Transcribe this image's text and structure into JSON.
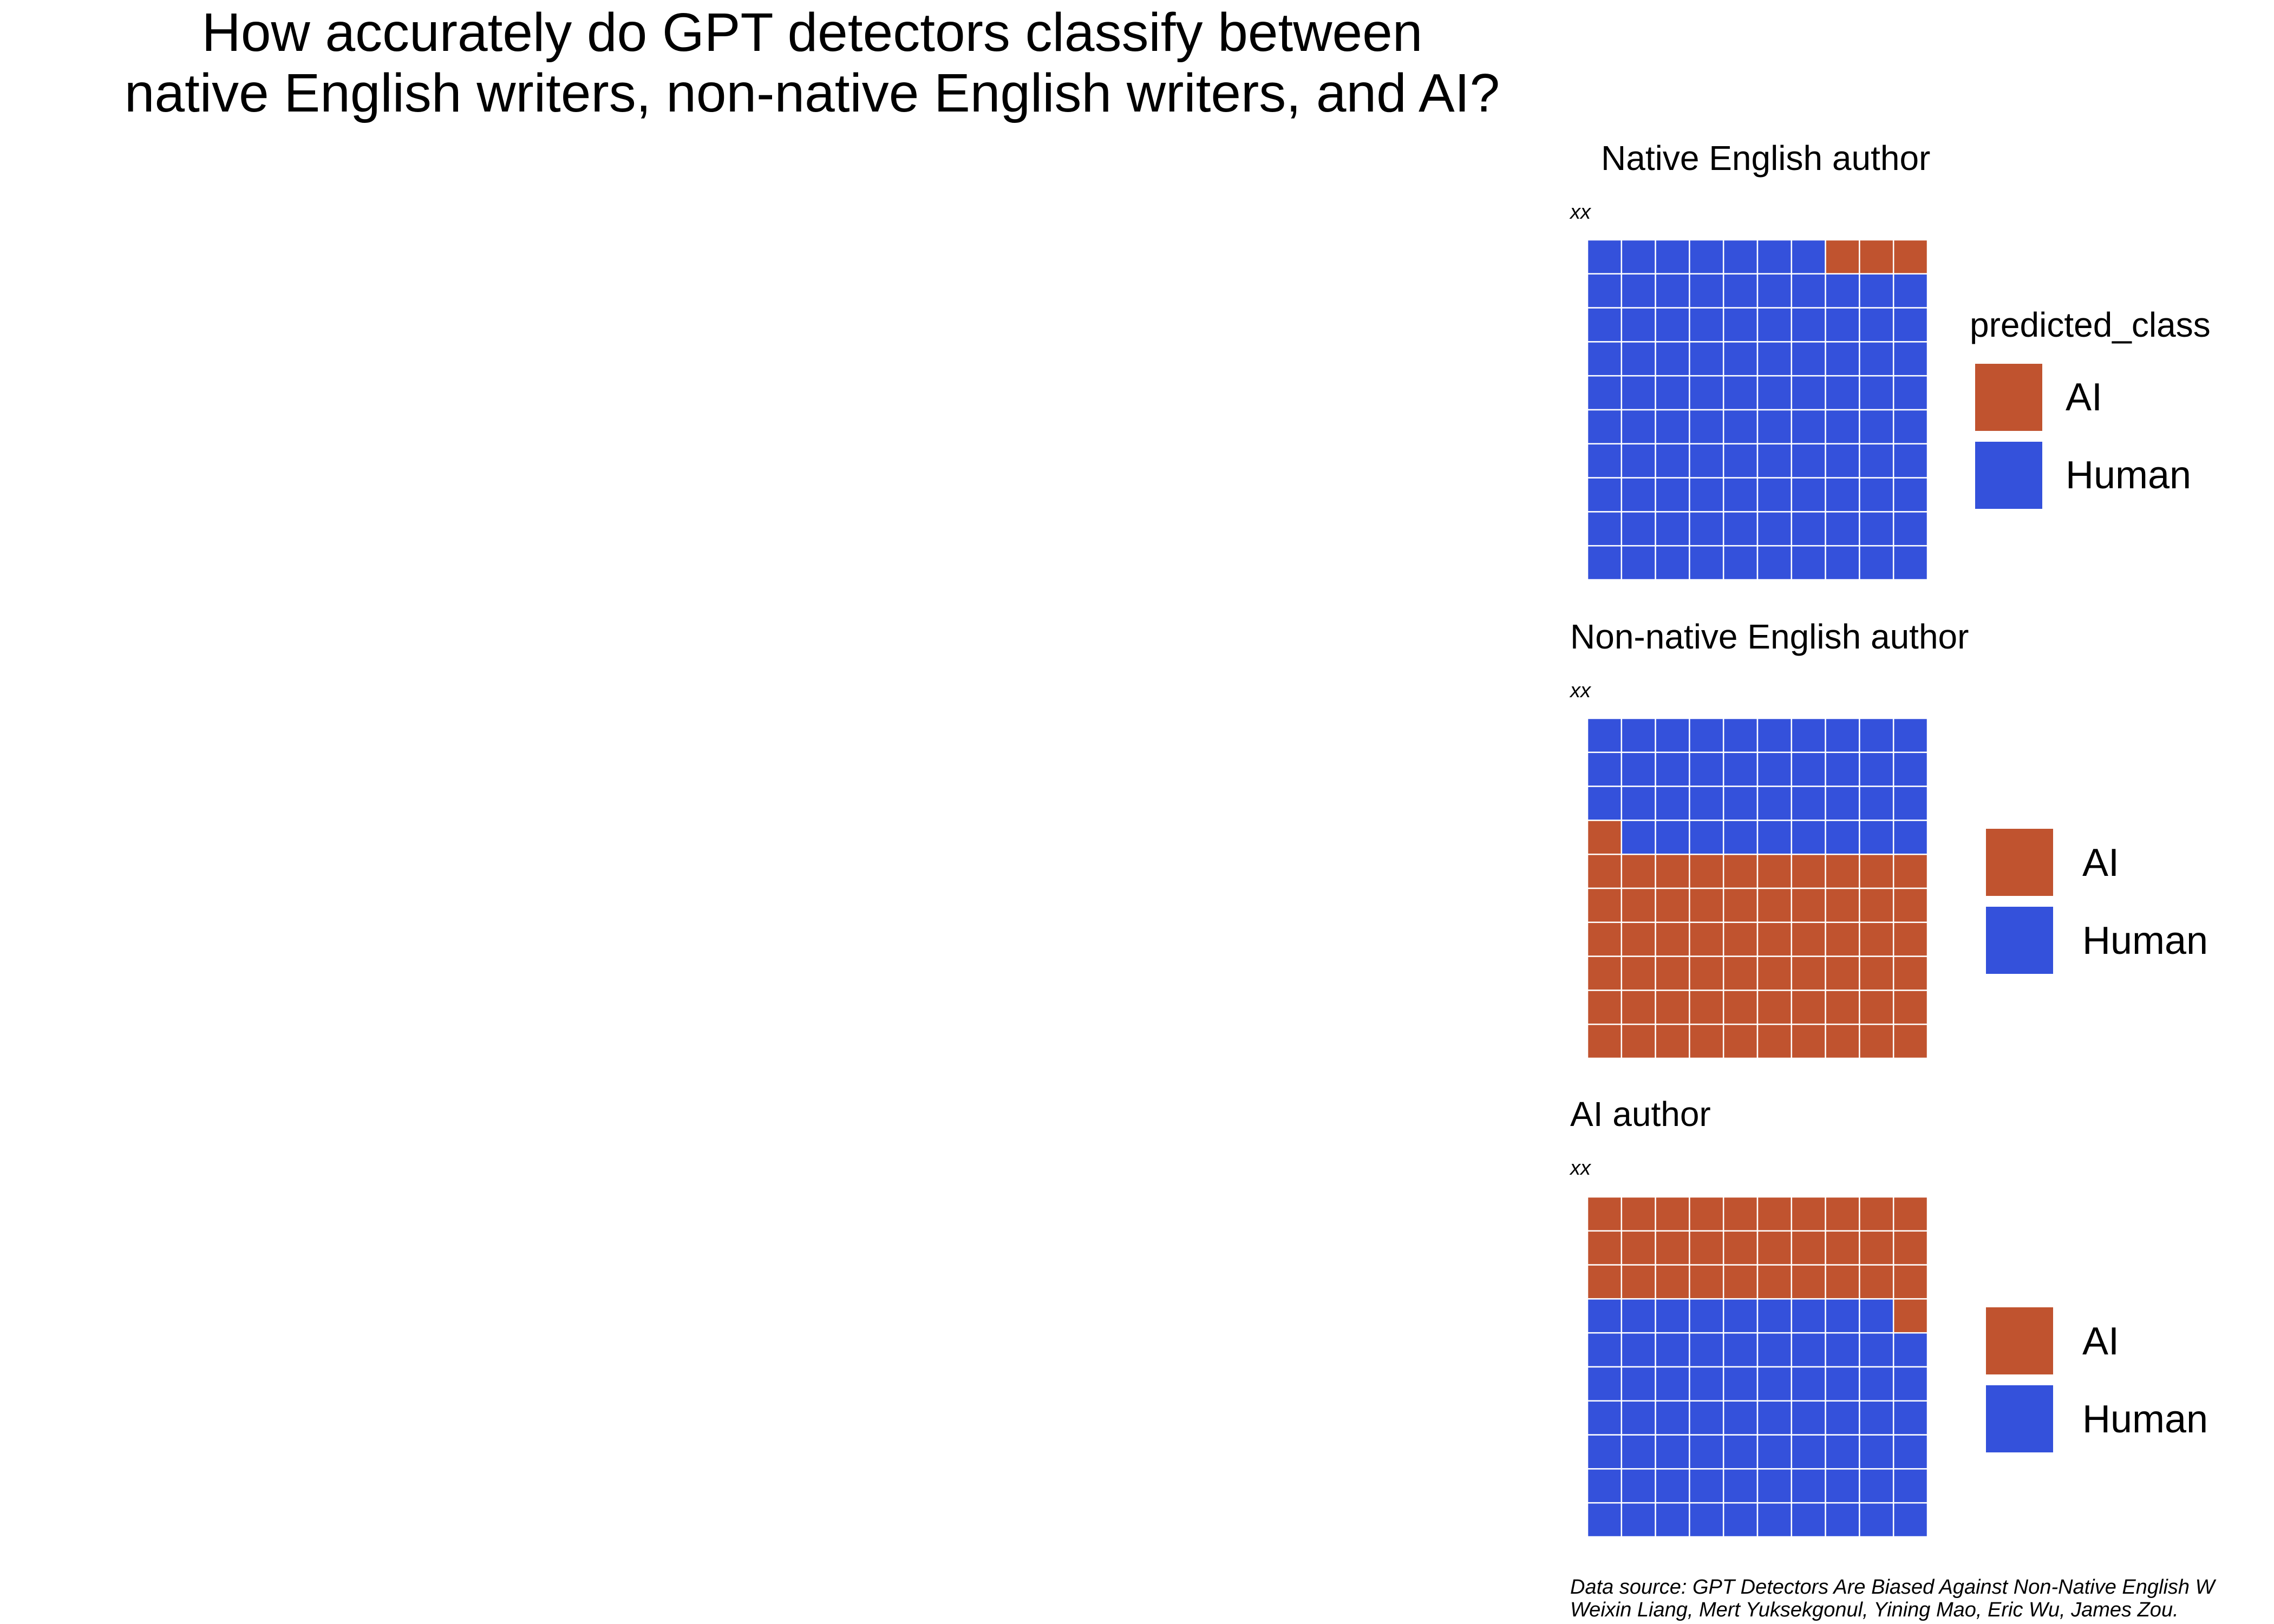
{
  "title_lines": [
    "How accurately do GPT detectors classify between",
    "native English writers, non-native English writers, and AI?"
  ],
  "caption_lines": [
    "Data source: GPT Detectors Are Biased Against Non-Native English W",
    "Weixin Liang, Mert Yuksekgonul, Yining Mao, Eric Wu, James Zou."
  ],
  "colors": {
    "AI": "#C0532F",
    "Human": "#3451DB",
    "grid_line": "#FFFFFF"
  },
  "legend": {
    "title": "predicted_class",
    "labels": [
      "AI",
      "Human"
    ]
  },
  "chart_data": [
    {
      "type": "waffle",
      "title": "Native English author",
      "subtitle": "xx",
      "grid": {
        "rows": 10,
        "cols": 10
      },
      "categories": [
        "AI",
        "Human"
      ],
      "values": [
        3,
        97
      ],
      "cells_top_to_bottom": [
        "H",
        "H",
        "H",
        "H",
        "H",
        "H",
        "H",
        "AI",
        "AI",
        "AI",
        "H",
        "H",
        "H",
        "H",
        "H",
        "H",
        "H",
        "H",
        "H",
        "H",
        "H",
        "H",
        "H",
        "H",
        "H",
        "H",
        "H",
        "H",
        "H",
        "H",
        "H",
        "H",
        "H",
        "H",
        "H",
        "H",
        "H",
        "H",
        "H",
        "H",
        "H",
        "H",
        "H",
        "H",
        "H",
        "H",
        "H",
        "H",
        "H",
        "H",
        "H",
        "H",
        "H",
        "H",
        "H",
        "H",
        "H",
        "H",
        "H",
        "H",
        "H",
        "H",
        "H",
        "H",
        "H",
        "H",
        "H",
        "H",
        "H",
        "H",
        "H",
        "H",
        "H",
        "H",
        "H",
        "H",
        "H",
        "H",
        "H",
        "H",
        "H",
        "H",
        "H",
        "H",
        "H",
        "H",
        "H",
        "H",
        "H",
        "H",
        "H",
        "H",
        "H",
        "H",
        "H",
        "H",
        "H",
        "H",
        "H",
        "H"
      ]
    },
    {
      "type": "waffle",
      "title": "Non-native English author",
      "subtitle": "xx",
      "grid": {
        "rows": 10,
        "cols": 10
      },
      "categories": [
        "AI",
        "Human"
      ],
      "values": [
        61,
        39
      ],
      "cells_top_to_bottom": [
        "H",
        "H",
        "H",
        "H",
        "H",
        "H",
        "H",
        "H",
        "H",
        "H",
        "H",
        "H",
        "H",
        "H",
        "H",
        "H",
        "H",
        "H",
        "H",
        "H",
        "H",
        "H",
        "H",
        "H",
        "H",
        "H",
        "H",
        "H",
        "H",
        "H",
        "AI",
        "H",
        "H",
        "H",
        "H",
        "H",
        "H",
        "H",
        "H",
        "H",
        "AI",
        "AI",
        "AI",
        "AI",
        "AI",
        "AI",
        "AI",
        "AI",
        "AI",
        "AI",
        "AI",
        "AI",
        "AI",
        "AI",
        "AI",
        "AI",
        "AI",
        "AI",
        "AI",
        "AI",
        "AI",
        "AI",
        "AI",
        "AI",
        "AI",
        "AI",
        "AI",
        "AI",
        "AI",
        "AI",
        "AI",
        "AI",
        "AI",
        "AI",
        "AI",
        "AI",
        "AI",
        "AI",
        "AI",
        "AI",
        "AI",
        "AI",
        "AI",
        "AI",
        "AI",
        "AI",
        "AI",
        "AI",
        "AI",
        "AI",
        "AI",
        "AI",
        "AI",
        "AI",
        "AI",
        "AI",
        "AI",
        "AI",
        "AI",
        "AI"
      ]
    },
    {
      "type": "waffle",
      "title": "AI author",
      "subtitle": "xx",
      "grid": {
        "rows": 10,
        "cols": 10
      },
      "categories": [
        "AI",
        "Human"
      ],
      "values": [
        31,
        69
      ],
      "cells_top_to_bottom": [
        "AI",
        "AI",
        "AI",
        "AI",
        "AI",
        "AI",
        "AI",
        "AI",
        "AI",
        "AI",
        "AI",
        "AI",
        "AI",
        "AI",
        "AI",
        "AI",
        "AI",
        "AI",
        "AI",
        "AI",
        "AI",
        "AI",
        "AI",
        "AI",
        "AI",
        "AI",
        "AI",
        "AI",
        "AI",
        "AI",
        "H",
        "H",
        "H",
        "H",
        "H",
        "H",
        "H",
        "H",
        "H",
        "AI",
        "H",
        "H",
        "H",
        "H",
        "H",
        "H",
        "H",
        "H",
        "H",
        "H",
        "H",
        "H",
        "H",
        "H",
        "H",
        "H",
        "H",
        "H",
        "H",
        "H",
        "H",
        "H",
        "H",
        "H",
        "H",
        "H",
        "H",
        "H",
        "H",
        "H",
        "H",
        "H",
        "H",
        "H",
        "H",
        "H",
        "H",
        "H",
        "H",
        "H",
        "H",
        "H",
        "H",
        "H",
        "H",
        "H",
        "H",
        "H",
        "H",
        "H",
        "H",
        "H",
        "H",
        "H",
        "H",
        "H",
        "H",
        "H",
        "H",
        "H"
      ]
    }
  ]
}
